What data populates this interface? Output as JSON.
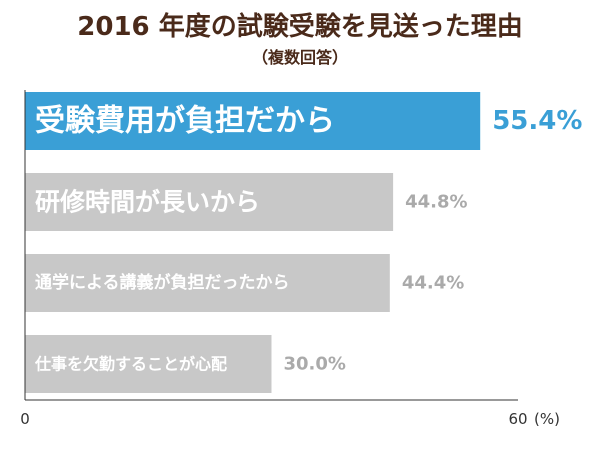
{
  "chart_data": {
    "type": "bar",
    "orientation": "horizontal",
    "title": "2016 年度の試験受験を見送った理由",
    "subtitle": "（複数回答）",
    "categories": [
      "受験費用が負担だから",
      "研修時間が長いから",
      "通学による講義が負担だったから",
      "仕事を欠勤することが心配"
    ],
    "values": [
      55.4,
      44.8,
      44.4,
      30.0
    ],
    "value_labels": [
      "55.4%",
      "44.8%",
      "44.4%",
      "30.0%"
    ],
    "xlim": [
      0,
      60
    ],
    "x_tick_labels": [
      "0",
      "60"
    ],
    "x_unit": "(%)",
    "grid": false,
    "colors": {
      "highlight_bar": "#3a9fd6",
      "highlight_label": "#3a9fd6",
      "normal_bar": "#c8c8c8",
      "normal_label": "#aaaaaa",
      "bar_text": "#ffffff",
      "title": "#4a2a1a",
      "axis": "#333333"
    }
  }
}
